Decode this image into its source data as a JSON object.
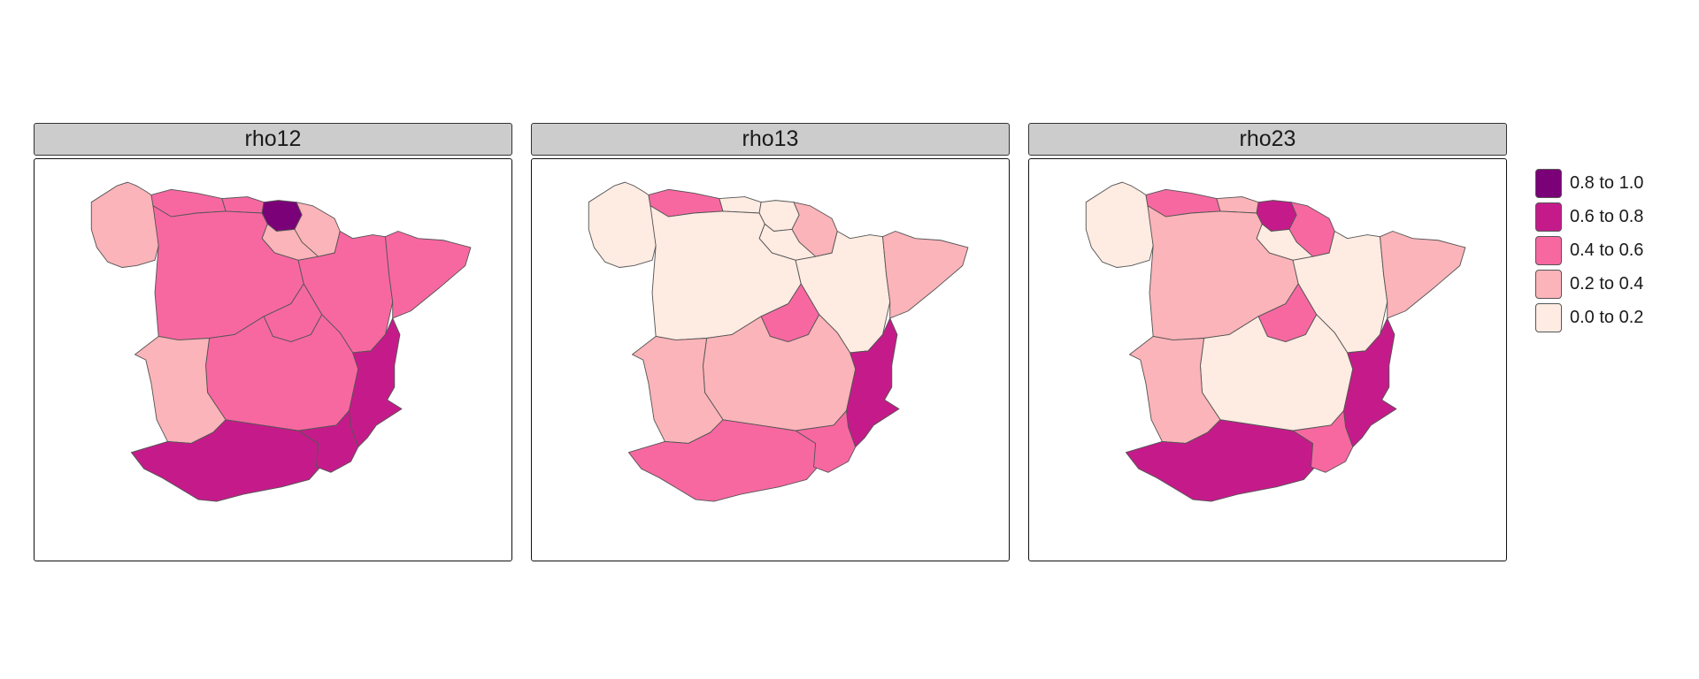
{
  "map": {
    "panels": [
      {
        "title": "rho12",
        "fills": {
          "galicia": 3,
          "asturias": 2,
          "cantabria": 2,
          "basque": 0,
          "navarra": 3,
          "larioja": 3,
          "castleon": 2,
          "aragon": 2,
          "catalonia": 2,
          "madrid": 2,
          "castlamancha": 2,
          "valencia": 1,
          "extremadura": 3,
          "andalusia": 1,
          "murcia": 1
        }
      },
      {
        "title": "rho13",
        "fills": {
          "galicia": 4,
          "asturias": 2,
          "cantabria": 4,
          "basque": 4,
          "navarra": 3,
          "larioja": 4,
          "castleon": 4,
          "aragon": 4,
          "catalonia": 3,
          "madrid": 2,
          "castlamancha": 3,
          "valencia": 1,
          "extremadura": 3,
          "andalusia": 2,
          "murcia": 2
        }
      },
      {
        "title": "rho23",
        "fills": {
          "galicia": 4,
          "asturias": 2,
          "cantabria": 3,
          "basque": 1,
          "navarra": 2,
          "larioja": 4,
          "castleon": 3,
          "aragon": 4,
          "catalonia": 3,
          "madrid": 2,
          "castlamancha": 4,
          "valencia": 1,
          "extremadura": 3,
          "andalusia": 1,
          "murcia": 2
        }
      }
    ],
    "legend": [
      {
        "label": "0.8 to 1.0",
        "color": "#7a0177"
      },
      {
        "label": "0.6 to 0.8",
        "color": "#c51b8a"
      },
      {
        "label": "0.4 to 0.6",
        "color": "#f768a1"
      },
      {
        "label": "0.2 to 0.4",
        "color": "#fbb4b9"
      },
      {
        "label": "0.0 to 0.2",
        "color": "#feebe2"
      }
    ]
  }
}
